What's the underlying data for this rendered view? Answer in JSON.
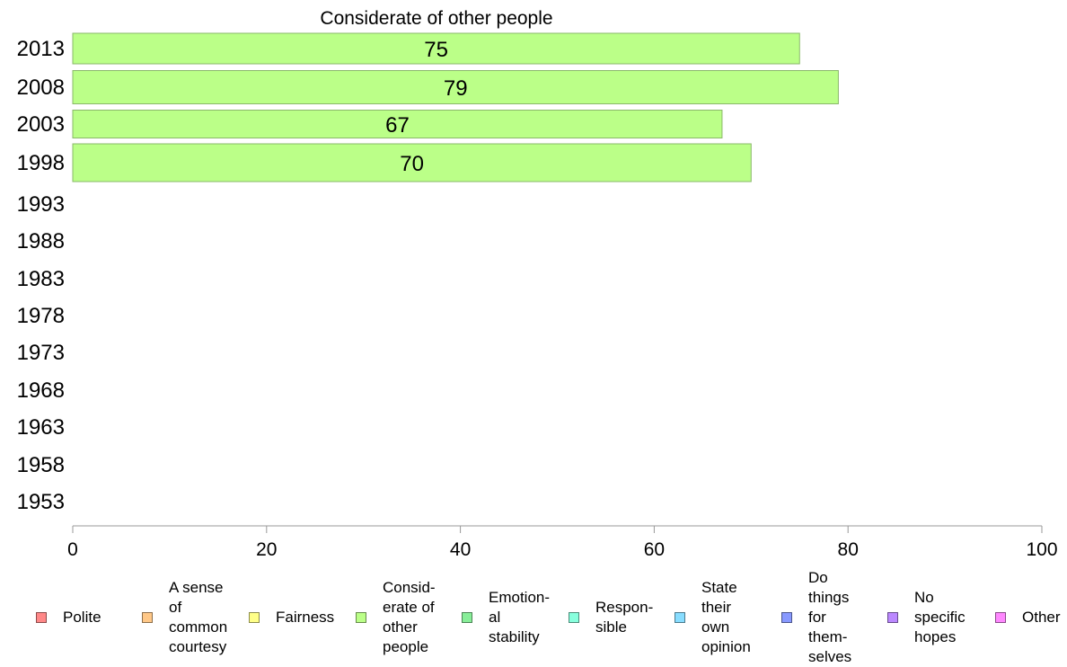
{
  "chart_data": {
    "type": "bar",
    "orientation": "horizontal",
    "title": "Considerate of other people",
    "categories": [
      "2013",
      "2008",
      "2003",
      "1998",
      "1993",
      "1988",
      "1983",
      "1978",
      "1973",
      "1968",
      "1963",
      "1958",
      "1953"
    ],
    "values": [
      75,
      79,
      67,
      70,
      null,
      null,
      null,
      null,
      null,
      null,
      null,
      null,
      null
    ],
    "xlim": [
      0,
      100
    ],
    "xticks": [
      "0",
      "20",
      "40",
      "60",
      "80",
      "100"
    ],
    "grid": false,
    "bar_color": "#bbff88",
    "legend_position": "bottom",
    "legend": [
      {
        "label": "Polite",
        "color": "#ff8888"
      },
      {
        "label": "A sense\nof\ncommon\ncourtesy",
        "color": "#ffc888"
      },
      {
        "label": "Fairness",
        "color": "#ffff88"
      },
      {
        "label": "Consid-\nerate of\nother\npeople",
        "color": "#bbff88"
      },
      {
        "label": "Emotion-\nal\nstability",
        "color": "#88ee99"
      },
      {
        "label": "Respon-\nsible",
        "color": "#88ffdd"
      },
      {
        "label": "State\ntheir\nown\nopinion",
        "color": "#88ddff"
      },
      {
        "label": "Do\nthings\nfor\nthem-\nselves",
        "color": "#8899ff"
      },
      {
        "label": "No\nspecific\nhopes",
        "color": "#bb88ff"
      },
      {
        "label": "Other",
        "color": "#ff88ff"
      }
    ]
  }
}
